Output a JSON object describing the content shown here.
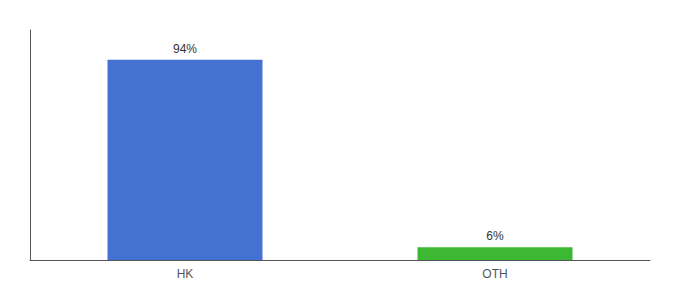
{
  "chart_data": {
    "type": "bar",
    "categories": [
      "HK",
      "OTH"
    ],
    "values": [
      94,
      6
    ],
    "value_labels": [
      "94%",
      "6%"
    ],
    "colors": [
      "#4472d3",
      "#3cb832"
    ],
    "ylim": [
      0,
      108
    ],
    "data_labels": true,
    "tick_labels": "x",
    "grid": false
  }
}
